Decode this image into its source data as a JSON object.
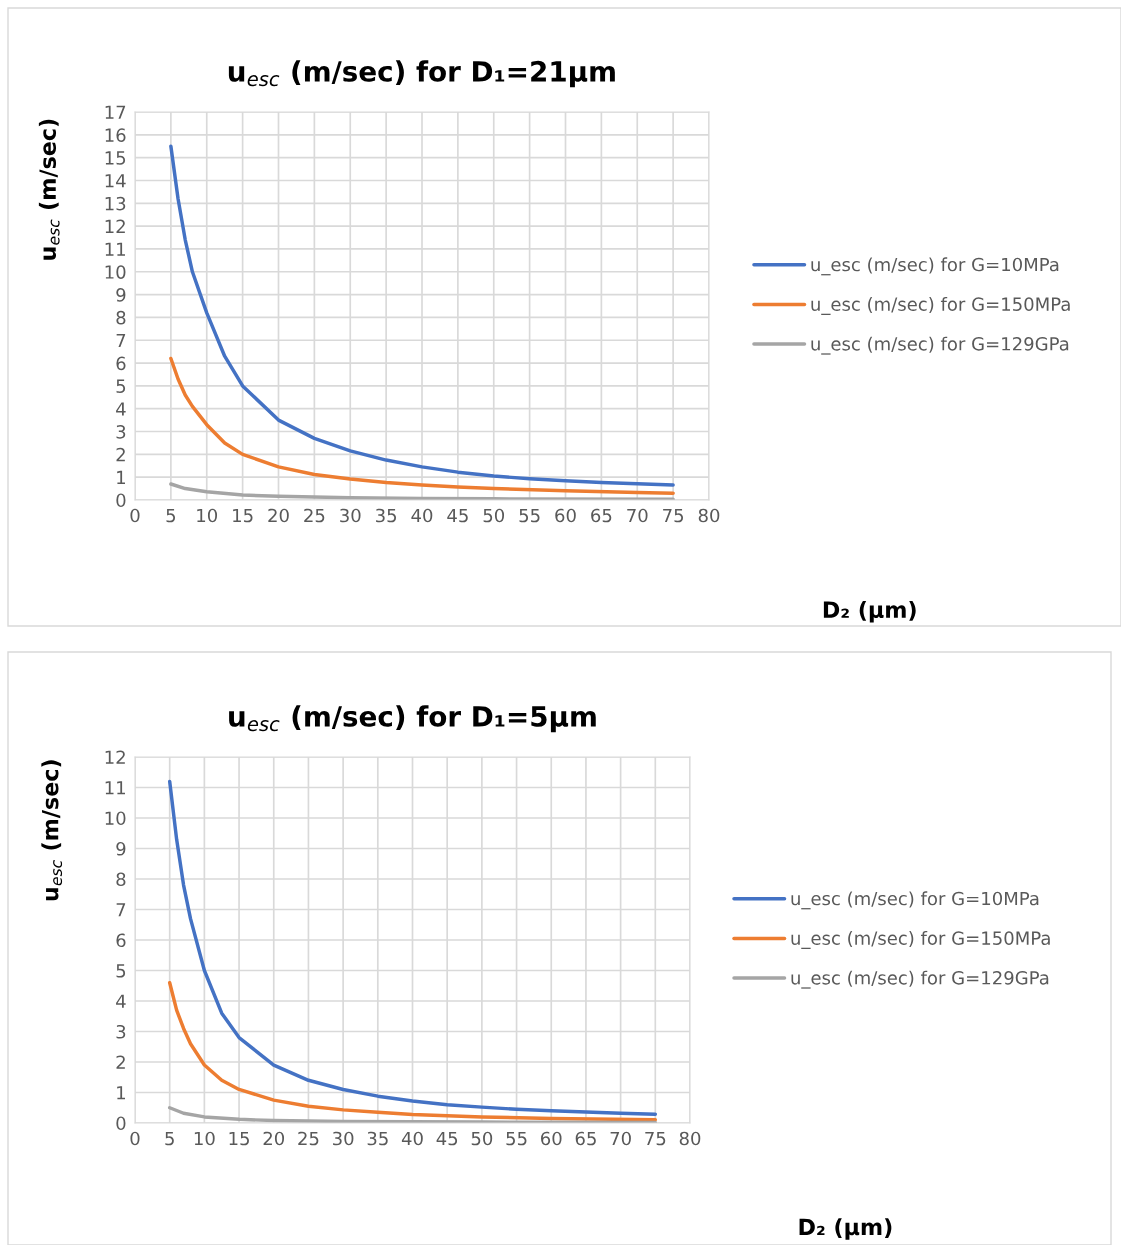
{
  "chart_data": [
    {
      "type": "line",
      "title": "u$_{esc}$ (m/sec) for D₁=21μm",
      "xlabel": "D₂ (μm)",
      "ylabel": "u$_{esc}$ (m/sec)",
      "xlim": [
        0,
        80
      ],
      "xticks": [
        0,
        5,
        10,
        15,
        20,
        25,
        30,
        35,
        40,
        45,
        50,
        55,
        60,
        65,
        70,
        75,
        80
      ],
      "ylim": [
        0,
        17
      ],
      "yticks": [
        0,
        1,
        2,
        3,
        4,
        5,
        6,
        7,
        8,
        9,
        10,
        11,
        12,
        13,
        14,
        15,
        16,
        17
      ],
      "grid": true,
      "legend": "right",
      "marker": "none",
      "line_style": "solid",
      "series": [
        {
          "name": "u_esc (m/sec) for G=10MPa",
          "color": "#4472c4",
          "x": [
            5,
            6,
            7,
            8,
            10,
            12.5,
            15,
            20,
            25,
            30,
            35,
            40,
            45,
            50,
            55,
            60,
            65,
            70,
            75
          ],
          "values": [
            15.5,
            13.2,
            11.4,
            10.0,
            8.2,
            6.3,
            5.0,
            3.5,
            2.7,
            2.15,
            1.75,
            1.45,
            1.22,
            1.05,
            0.93,
            0.84,
            0.77,
            0.71,
            0.66
          ]
        },
        {
          "name": "u_esc (m/sec) for G=150MPa",
          "color": "#ed7d31",
          "x": [
            5,
            6,
            7,
            8,
            10,
            12.5,
            15,
            20,
            25,
            30,
            35,
            40,
            45,
            50,
            60,
            70,
            75
          ],
          "values": [
            6.2,
            5.3,
            4.6,
            4.1,
            3.3,
            2.5,
            2.0,
            1.45,
            1.12,
            0.92,
            0.77,
            0.66,
            0.57,
            0.5,
            0.41,
            0.33,
            0.3
          ]
        },
        {
          "name": "u_esc (m/sec) for G=129GPa",
          "color": "#a5a5a5",
          "x": [
            5,
            7,
            10,
            15,
            20,
            30,
            40,
            50,
            75
          ],
          "values": [
            0.7,
            0.5,
            0.36,
            0.22,
            0.16,
            0.1,
            0.07,
            0.05,
            0.03
          ]
        }
      ]
    },
    {
      "type": "line",
      "title": "u$_{esc}$ (m/sec) for D₁=5μm",
      "xlabel": "D₂ (μm)",
      "ylabel": "u$_{esc}$ (m/sec)",
      "xlim": [
        0,
        80
      ],
      "xticks": [
        0,
        5,
        10,
        15,
        20,
        25,
        30,
        35,
        40,
        45,
        50,
        55,
        60,
        65,
        70,
        75,
        80
      ],
      "ylim": [
        0,
        12
      ],
      "yticks": [
        0,
        1,
        2,
        3,
        4,
        5,
        6,
        7,
        8,
        9,
        10,
        11,
        12
      ],
      "grid": true,
      "legend": "right",
      "marker": "none",
      "line_style": "solid",
      "series": [
        {
          "name": "u_esc (m/sec) for G=10MPa",
          "color": "#4472c4",
          "x": [
            5,
            6,
            7,
            8,
            10,
            12.5,
            15,
            20,
            25,
            30,
            35,
            40,
            45,
            50,
            55,
            60,
            65,
            70,
            75
          ],
          "values": [
            11.2,
            9.3,
            7.8,
            6.7,
            5.0,
            3.6,
            2.8,
            1.9,
            1.4,
            1.1,
            0.88,
            0.72,
            0.6,
            0.52,
            0.45,
            0.4,
            0.36,
            0.32,
            0.29
          ]
        },
        {
          "name": "u_esc (m/sec) for G=150MPa",
          "color": "#ed7d31",
          "x": [
            5,
            6,
            7,
            8,
            10,
            12.5,
            15,
            20,
            25,
            30,
            35,
            40,
            50,
            60,
            75
          ],
          "values": [
            4.6,
            3.7,
            3.1,
            2.6,
            1.9,
            1.4,
            1.1,
            0.75,
            0.55,
            0.43,
            0.35,
            0.28,
            0.2,
            0.15,
            0.11
          ]
        },
        {
          "name": "u_esc (m/sec) for G=129GPa",
          "color": "#a5a5a5",
          "x": [
            5,
            7,
            10,
            15,
            20,
            30,
            50,
            75
          ],
          "values": [
            0.5,
            0.32,
            0.2,
            0.12,
            0.08,
            0.05,
            0.03,
            0.02
          ]
        }
      ]
    }
  ]
}
